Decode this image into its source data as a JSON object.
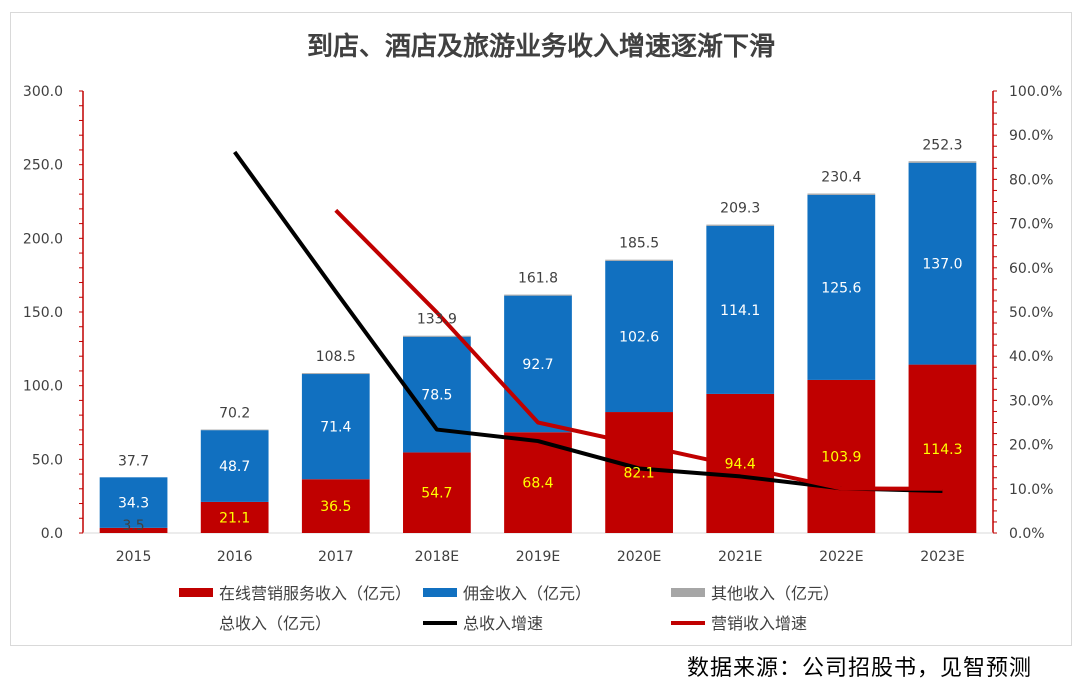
{
  "source": "数据来源：公司招股书，见智预测",
  "chart_data": {
    "type": "bar",
    "title": "到店、酒店及旅游业务收入增速逐渐下滑",
    "categories": [
      "2015",
      "2016",
      "2017",
      "2018E",
      "2019E",
      "2020E",
      "2021E",
      "2022E",
      "2023E"
    ],
    "left_axis": {
      "ticks": [
        "0.0",
        "50.0",
        "100.0",
        "150.0",
        "200.0",
        "250.0",
        "300.0"
      ],
      "range": [
        0,
        300
      ]
    },
    "right_axis": {
      "ticks": [
        "0.0%",
        "10.0%",
        "20.0%",
        "30.0%",
        "40.0%",
        "50.0%",
        "60.0%",
        "70.0%",
        "80.0%",
        "90.0%",
        "100.0%"
      ],
      "range": [
        0,
        100
      ]
    },
    "series": [
      {
        "name": "在线营销服务收入（亿元）",
        "type": "stacked-bar",
        "color": "#c00000",
        "values": [
          3.5,
          21.1,
          36.5,
          54.7,
          68.4,
          82.1,
          94.4,
          103.9,
          114.3
        ],
        "labels": [
          "3.5",
          "21.1",
          "36.5",
          "54.7",
          "68.4",
          "82.1",
          "94.4",
          "103.9",
          "114.3"
        ]
      },
      {
        "name": "佣金收入（亿元）",
        "type": "stacked-bar",
        "color": "#1170c0",
        "values": [
          34.3,
          48.7,
          71.4,
          78.5,
          92.7,
          102.6,
          114.1,
          125.6,
          137.0
        ],
        "labels": [
          "34.3",
          "48.7",
          "71.4",
          "78.5",
          "92.7",
          "102.6",
          "114.1",
          "125.6",
          "137.0"
        ]
      },
      {
        "name": "其他收入（亿元）",
        "type": "stacked-bar",
        "color": "#a6a6a6",
        "values": [
          0,
          0.4,
          0.6,
          0.7,
          0.7,
          0.8,
          0.8,
          0.9,
          1.0
        ]
      },
      {
        "name": "总收入（亿元）",
        "type": "label",
        "color": "#404040",
        "values": [
          37.7,
          70.2,
          108.5,
          133.9,
          161.8,
          185.5,
          209.3,
          230.4,
          252.3
        ],
        "labels": [
          "37.7",
          "70.2",
          "108.5",
          "133.9",
          "161.8",
          "185.5",
          "209.3",
          "230.4",
          "252.3"
        ]
      },
      {
        "name": "总收入增速",
        "type": "line",
        "axis": "right",
        "color": "#000000",
        "values": [
          null,
          86.2,
          54.6,
          23.4,
          20.8,
          14.6,
          12.8,
          10.1,
          9.5
        ]
      },
      {
        "name": "营销收入增速",
        "type": "line",
        "axis": "right",
        "color": "#c00000",
        "values": [
          null,
          null,
          73.0,
          49.9,
          25.0,
          20.0,
          15.0,
          10.1,
          10.0
        ]
      }
    ],
    "legend": {
      "placement": "bottom",
      "items": [
        {
          "label": "在线营销服务收入（亿元）",
          "color": "#c00000",
          "kind": "box"
        },
        {
          "label": "佣金收入（亿元）",
          "color": "#1170c0",
          "kind": "box"
        },
        {
          "label": "其他收入（亿元）",
          "color": "#a6a6a6",
          "kind": "box"
        },
        {
          "label": "总收入（亿元）",
          "color": "#ffffff",
          "kind": "none"
        },
        {
          "label": "总收入增速",
          "color": "#000000",
          "kind": "line"
        },
        {
          "label": "营销收入增速",
          "color": "#c00000",
          "kind": "line"
        }
      ]
    }
  }
}
